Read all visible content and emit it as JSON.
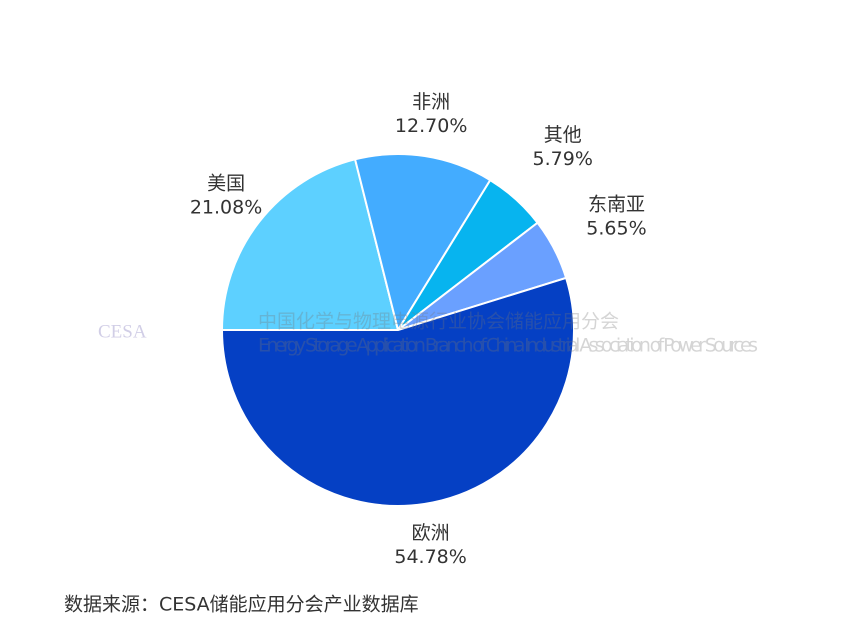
{
  "chart_data": {
    "type": "pie",
    "categories": [
      "美国",
      "非洲",
      "其他",
      "东南亚",
      "欧洲"
    ],
    "values": [
      21.08,
      12.7,
      5.79,
      5.65,
      54.78
    ],
    "value_labels": [
      "21.08%",
      "12.70%",
      "5.79%",
      "5.65%",
      "54.78%"
    ],
    "colors": [
      "#5dd0ff",
      "#43acff",
      "#07b4ef",
      "#6aa0ff",
      "#0540c4"
    ],
    "source": "数据来源：CESA储能应用分会产业数据库",
    "watermark": {
      "logo": "CESA",
      "name": "中国化学与物理电源行业协会储能应用分会",
      "name_en": "Energy Storage Application Branch of China Industrial Association of Power Sources"
    }
  }
}
